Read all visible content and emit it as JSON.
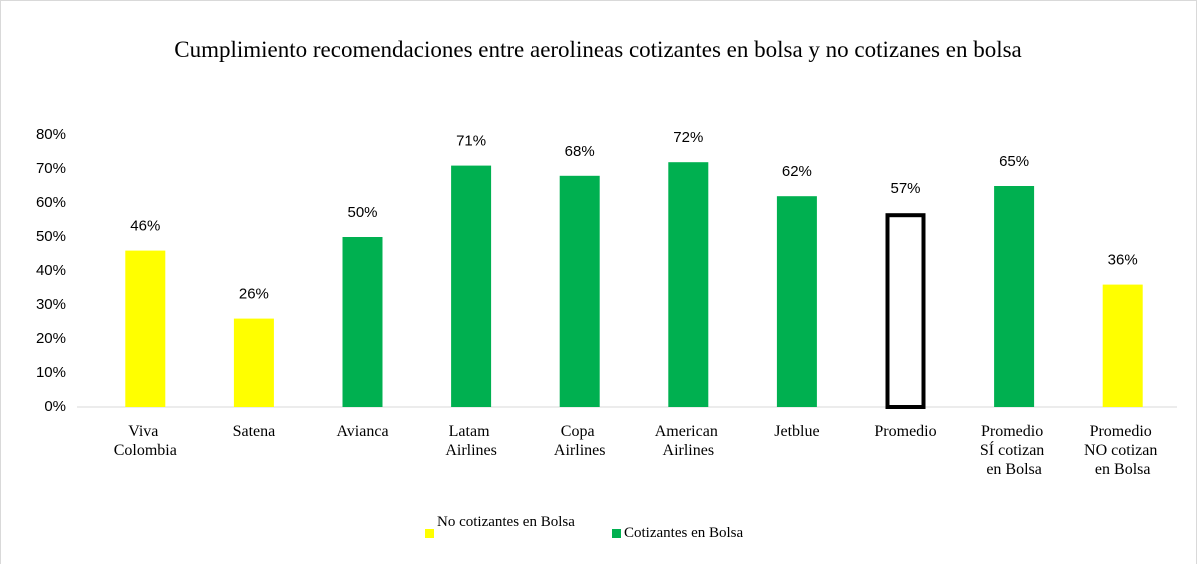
{
  "chart_data": {
    "type": "bar",
    "title": "Cumplimiento recomendaciones entre aerolineas cotizantes en bolsa y no cotizanes en bolsa",
    "categories": [
      "Viva Colombia",
      "Satena",
      "Avianca",
      "Latam Airlines",
      "Copa Airlines",
      "American Airlines",
      "Jetblue",
      "Promedio",
      "Promedio SÍ cotizan en Bolsa",
      "Promedio NO cotizan en Bolsa"
    ],
    "values": [
      46,
      26,
      50,
      71,
      68,
      72,
      62,
      57,
      65,
      36
    ],
    "value_labels": [
      "46%",
      "26%",
      "50%",
      "71%",
      "68%",
      "72%",
      "62%",
      "57%",
      "65%",
      "36%"
    ],
    "colors": [
      "#ffff00",
      "#ffff00",
      "#00b050",
      "#00b050",
      "#00b050",
      "#00b050",
      "#00b050",
      "#ffffff",
      "#00b050",
      "#ffff00"
    ],
    "edgecolors": [
      "none",
      "none",
      "none",
      "none",
      "none",
      "none",
      "none",
      "#000000",
      "none",
      "none"
    ],
    "ylim": [
      0,
      80
    ],
    "yticks": [
      {
        "value": 0,
        "label": "0%"
      },
      {
        "value": 10,
        "label": "10%"
      },
      {
        "value": 20,
        "label": "20%"
      },
      {
        "value": 30,
        "label": "30%"
      },
      {
        "value": 40,
        "label": "40%"
      },
      {
        "value": 50,
        "label": "50%"
      },
      {
        "value": 60,
        "label": "60%"
      },
      {
        "value": 70,
        "label": "70%"
      },
      {
        "value": 80,
        "label": "80%"
      }
    ],
    "grid": false,
    "legend": [
      {
        "name": "No cotizantes en Bolsa",
        "color": "#ffff00"
      },
      {
        "name": "Cotizantes en Bolsa",
        "color": "#00b050"
      }
    ],
    "legend_position": "bottom"
  }
}
